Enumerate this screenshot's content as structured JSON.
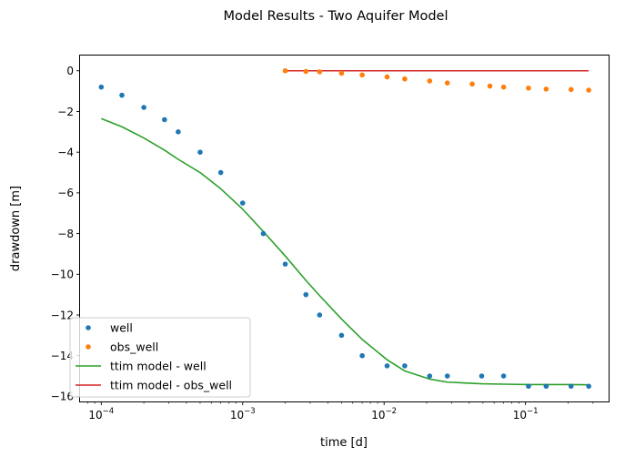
{
  "chart_data": {
    "type": "scatter",
    "title": "Model Results - Two Aquifer Model",
    "xlabel": "time [d]",
    "ylabel": "drawdown [m]",
    "xscale": "log",
    "xlim": [
      7.08e-05,
      0.387
    ],
    "ylim": [
      -16.25,
      0.75
    ],
    "xticks": [
      {
        "value": 0.0001,
        "base": "10",
        "exp": "−4"
      },
      {
        "value": 0.001,
        "base": "10",
        "exp": "−3"
      },
      {
        "value": 0.01,
        "base": "10",
        "exp": "−2"
      },
      {
        "value": 0.1,
        "base": "10",
        "exp": "−1"
      }
    ],
    "yticks": [
      {
        "value": 0,
        "label": "0"
      },
      {
        "value": -2,
        "label": "−2"
      },
      {
        "value": -4,
        "label": "−4"
      },
      {
        "value": -6,
        "label": "−6"
      },
      {
        "value": -8,
        "label": "−8"
      },
      {
        "value": -10,
        "label": "−10"
      },
      {
        "value": -12,
        "label": "−12"
      },
      {
        "value": -14,
        "label": "−14"
      },
      {
        "value": -16,
        "label": "−16"
      }
    ],
    "grid": false,
    "legend_position": "lower-left",
    "series": [
      {
        "name": "well",
        "kind": "points",
        "color": "#1f77b4",
        "x": [
          0.0001,
          0.00014,
          0.0002,
          0.00028,
          0.00035,
          0.0005,
          0.0007,
          0.001,
          0.0014,
          0.002,
          0.0028,
          0.0035,
          0.005,
          0.007,
          0.0105,
          0.014,
          0.021,
          0.028,
          0.049,
          0.07,
          0.105,
          0.14,
          0.21,
          0.28
        ],
        "y": [
          -0.8,
          -1.2,
          -1.8,
          -2.4,
          -3.0,
          -4.0,
          -5.0,
          -6.5,
          -8.0,
          -9.5,
          -11.0,
          -12.0,
          -13.0,
          -14.0,
          -14.5,
          -14.5,
          -15.0,
          -15.0,
          -15.0,
          -15.0,
          -15.5,
          -15.5,
          -15.5,
          -15.5
        ]
      },
      {
        "name": "obs_well",
        "kind": "points",
        "color": "#ff7f0e",
        "x": [
          0.002,
          0.0028,
          0.0035,
          0.005,
          0.007,
          0.0105,
          0.014,
          0.021,
          0.028,
          0.042,
          0.056,
          0.07,
          0.105,
          0.14,
          0.21,
          0.28
        ],
        "y": [
          0.0,
          -0.03,
          -0.05,
          -0.12,
          -0.2,
          -0.3,
          -0.4,
          -0.5,
          -0.6,
          -0.65,
          -0.75,
          -0.8,
          -0.85,
          -0.9,
          -0.92,
          -0.95
        ]
      },
      {
        "name": "ttim model - well",
        "kind": "line",
        "color": "#2ca02c",
        "x": [
          0.0001,
          0.00014,
          0.0002,
          0.00028,
          0.00035,
          0.0005,
          0.0007,
          0.001,
          0.0014,
          0.002,
          0.0028,
          0.0035,
          0.005,
          0.007,
          0.0105,
          0.014,
          0.021,
          0.028,
          0.049,
          0.07,
          0.105,
          0.14,
          0.21,
          0.28
        ],
        "y": [
          -2.35,
          -2.75,
          -3.3,
          -3.9,
          -4.35,
          -5.0,
          -5.8,
          -6.8,
          -7.9,
          -9.1,
          -10.3,
          -11.05,
          -12.2,
          -13.2,
          -14.2,
          -14.75,
          -15.15,
          -15.3,
          -15.38,
          -15.4,
          -15.42,
          -15.42,
          -15.42,
          -15.43
        ]
      },
      {
        "name": "ttim model - obs_well",
        "kind": "line",
        "color": "#d62728",
        "x": [
          0.002,
          0.0035,
          0.007,
          0.014,
          0.028,
          0.07,
          0.14,
          0.28
        ],
        "y": [
          0,
          0,
          0,
          0,
          0,
          0,
          0,
          0
        ]
      }
    ]
  }
}
